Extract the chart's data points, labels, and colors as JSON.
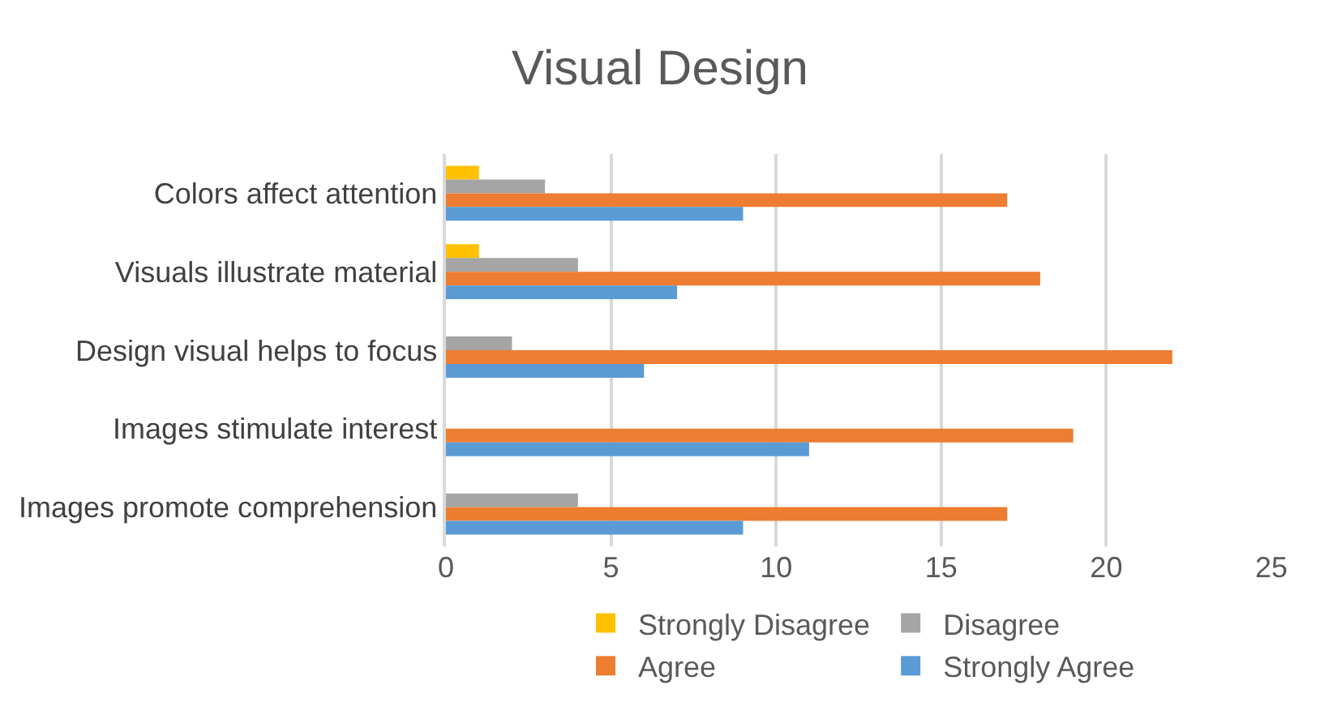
{
  "chart_data": {
    "type": "bar",
    "orientation": "horizontal",
    "title": "Visual Design",
    "categories": [
      "Colors affect attention",
      "Visuals illustrate material",
      "Design visual helps to focus",
      "Images stimulate interest",
      "Images promote comprehension"
    ],
    "series": [
      {
        "name": "Strongly Disagree",
        "color": "#ffc000",
        "values": [
          1,
          1,
          0,
          0,
          0
        ]
      },
      {
        "name": "Disagree",
        "color": "#a5a5a5",
        "values": [
          3,
          4,
          2,
          0,
          4
        ]
      },
      {
        "name": "Agree",
        "color": "#ed7d31",
        "values": [
          17,
          18,
          22,
          19,
          17
        ]
      },
      {
        "name": "Strongly Agree",
        "color": "#5b9bd5",
        "values": [
          9,
          7,
          6,
          11,
          9
        ]
      }
    ],
    "xlim": [
      0,
      25
    ],
    "xticks": [
      0,
      5,
      10,
      15,
      20,
      25
    ],
    "grid": "x",
    "legend": "bottom"
  }
}
